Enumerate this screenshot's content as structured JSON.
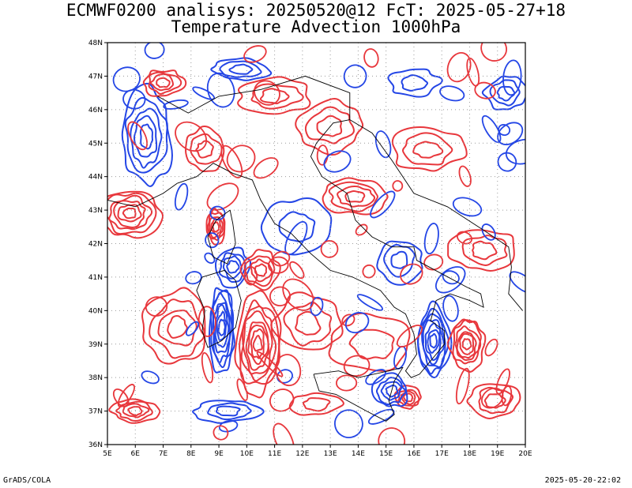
{
  "title": {
    "line1": "ECMWF0200 analisys: 20250520@12 FcT: 2025-05-27+18",
    "line2": "Temperature Advection 1000hPa"
  },
  "credits": {
    "left": "GrADS/COLA",
    "right": "2025-05-20-22:02"
  },
  "map": {
    "lon_range": [
      5,
      20
    ],
    "lat_range": [
      36,
      48
    ],
    "lon_ticks": [
      "5E",
      "6E",
      "7E",
      "8E",
      "9E",
      "10E",
      "11E",
      "12E",
      "13E",
      "14E",
      "15E",
      "16E",
      "17E",
      "18E",
      "19E",
      "20E"
    ],
    "lat_ticks": [
      "36N",
      "37N",
      "38N",
      "39N",
      "40N",
      "41N",
      "42N",
      "43N",
      "44N",
      "45N",
      "46N",
      "47N",
      "48N"
    ],
    "grid": true,
    "colors": {
      "warm": "#e8373c",
      "cold": "#2446e6",
      "coast": "#000000",
      "grid": "#9a9a9a",
      "frame": "#000000"
    }
  }
}
